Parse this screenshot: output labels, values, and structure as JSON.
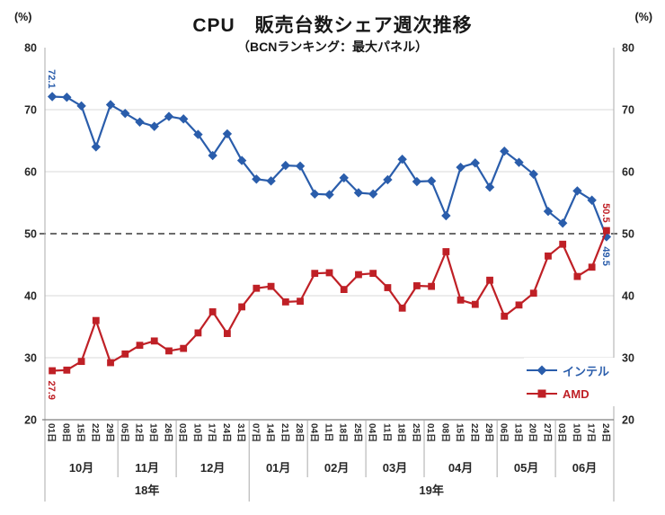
{
  "chart_data": {
    "type": "line",
    "title": "CPU　販売台数シェア週次推移",
    "subtitle": "（BCNランキング：最大パネル）",
    "unit_label": "(%)",
    "ylim": [
      20,
      80
    ],
    "y_ticks": [
      80,
      70,
      60,
      50,
      40,
      30,
      20
    ],
    "reference_line": 50,
    "grid": true,
    "legend_position": "inside-bottom-right",
    "x": [
      "01日",
      "08日",
      "15日",
      "22日",
      "29日",
      "05日",
      "12日",
      "19日",
      "26日",
      "03日",
      "10日",
      "17日",
      "24日",
      "31日",
      "07日",
      "14日",
      "21日",
      "28日",
      "04日",
      "11日",
      "18日",
      "25日",
      "04日",
      "11日",
      "18日",
      "25日",
      "01日",
      "08日",
      "15日",
      "22日",
      "29日",
      "06日",
      "13日",
      "20日",
      "27日",
      "03日",
      "10日",
      "17日",
      "24日"
    ],
    "month_groups": [
      {
        "label": "10月",
        "weeks": 5
      },
      {
        "label": "11月",
        "weeks": 4
      },
      {
        "label": "12月",
        "weeks": 5
      },
      {
        "label": "01月",
        "weeks": 4
      },
      {
        "label": "02月",
        "weeks": 4
      },
      {
        "label": "03月",
        "weeks": 4
      },
      {
        "label": "04月",
        "weeks": 5
      },
      {
        "label": "05月",
        "weeks": 4
      },
      {
        "label": "06月",
        "weeks": 4
      }
    ],
    "year_groups": [
      {
        "label": "18年",
        "months": 3
      },
      {
        "label": "19年",
        "months": 6
      }
    ],
    "series": [
      {
        "key": "intel",
        "name": "インテル",
        "color": "#2a5dab",
        "marker": "diamond",
        "values": [
          72.1,
          72.0,
          70.6,
          64.0,
          70.8,
          69.4,
          68.0,
          67.3,
          68.9,
          68.5,
          66.0,
          62.6,
          66.1,
          61.8,
          58.8,
          58.5,
          61.0,
          60.9,
          56.4,
          56.3,
          59.0,
          56.6,
          56.4,
          58.7,
          62.0,
          58.4,
          58.5,
          52.9,
          60.7,
          61.4,
          57.5,
          63.3,
          61.5,
          59.6,
          53.6,
          51.7,
          56.9,
          55.4,
          49.5
        ]
      },
      {
        "key": "amd",
        "name": "AMD",
        "color": "#bf2026",
        "marker": "square",
        "values": [
          27.9,
          28.0,
          29.4,
          36.0,
          29.2,
          30.6,
          32.0,
          32.7,
          31.1,
          31.5,
          34.0,
          37.4,
          33.9,
          38.2,
          41.2,
          41.5,
          39.0,
          39.1,
          43.6,
          43.7,
          41.0,
          43.4,
          43.6,
          41.3,
          38.0,
          41.6,
          41.5,
          47.1,
          39.3,
          38.6,
          42.5,
          36.7,
          38.5,
          40.4,
          46.4,
          48.3,
          43.1,
          44.6,
          50.5
        ]
      }
    ],
    "annotations": [
      {
        "text": "72.1",
        "series": 0,
        "index": 0,
        "placement": "above"
      },
      {
        "text": "27.9",
        "series": 1,
        "index": 0,
        "placement": "below"
      },
      {
        "text": "50.5",
        "series": 1,
        "index": 38,
        "placement": "above"
      },
      {
        "text": "49.5",
        "series": 0,
        "index": 38,
        "placement": "below"
      }
    ],
    "colors": {
      "gridline": "#d9d9d9",
      "axis": "#ababab",
      "x_axis": "#7f7f7f",
      "reference": "#3a3a3a",
      "tick_text": "#262626"
    }
  }
}
